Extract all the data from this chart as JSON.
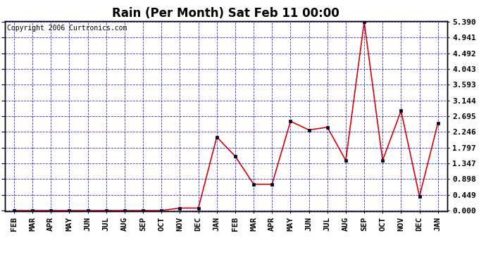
{
  "title": "Rain (Per Month) Sat Feb 11 00:00",
  "copyright": "Copyright 2006 Curtronics.com",
  "x_labels": [
    "FEB",
    "MAR",
    "APR",
    "MAY",
    "JUN",
    "JUL",
    "AUG",
    "SEP",
    "OCT",
    "NOV",
    "DEC",
    "JAN",
    "FEB",
    "MAR",
    "APR",
    "MAY",
    "JUN",
    "JUL",
    "AUG",
    "SEP",
    "OCT",
    "NOV",
    "DEC",
    "JAN"
  ],
  "y_data": [
    0.0,
    0.0,
    0.0,
    0.0,
    0.0,
    0.0,
    0.0,
    0.0,
    0.0,
    0.07,
    0.07,
    2.1,
    1.55,
    0.75,
    0.75,
    2.55,
    2.3,
    2.38,
    1.43,
    5.39,
    1.43,
    2.85,
    0.4,
    2.5
  ],
  "yticks": [
    0.0,
    0.449,
    0.898,
    1.347,
    1.797,
    2.246,
    2.695,
    3.144,
    3.593,
    4.043,
    4.492,
    4.941,
    5.39
  ],
  "ymax": 5.39,
  "ymin": 0.0,
  "line_color": "#dd0000",
  "marker_color": "#000000",
  "bg_color": "#ffffff",
  "grid_color": "#0000cc",
  "title_fontsize": 12,
  "tick_fontsize": 8,
  "copyright_fontsize": 7
}
